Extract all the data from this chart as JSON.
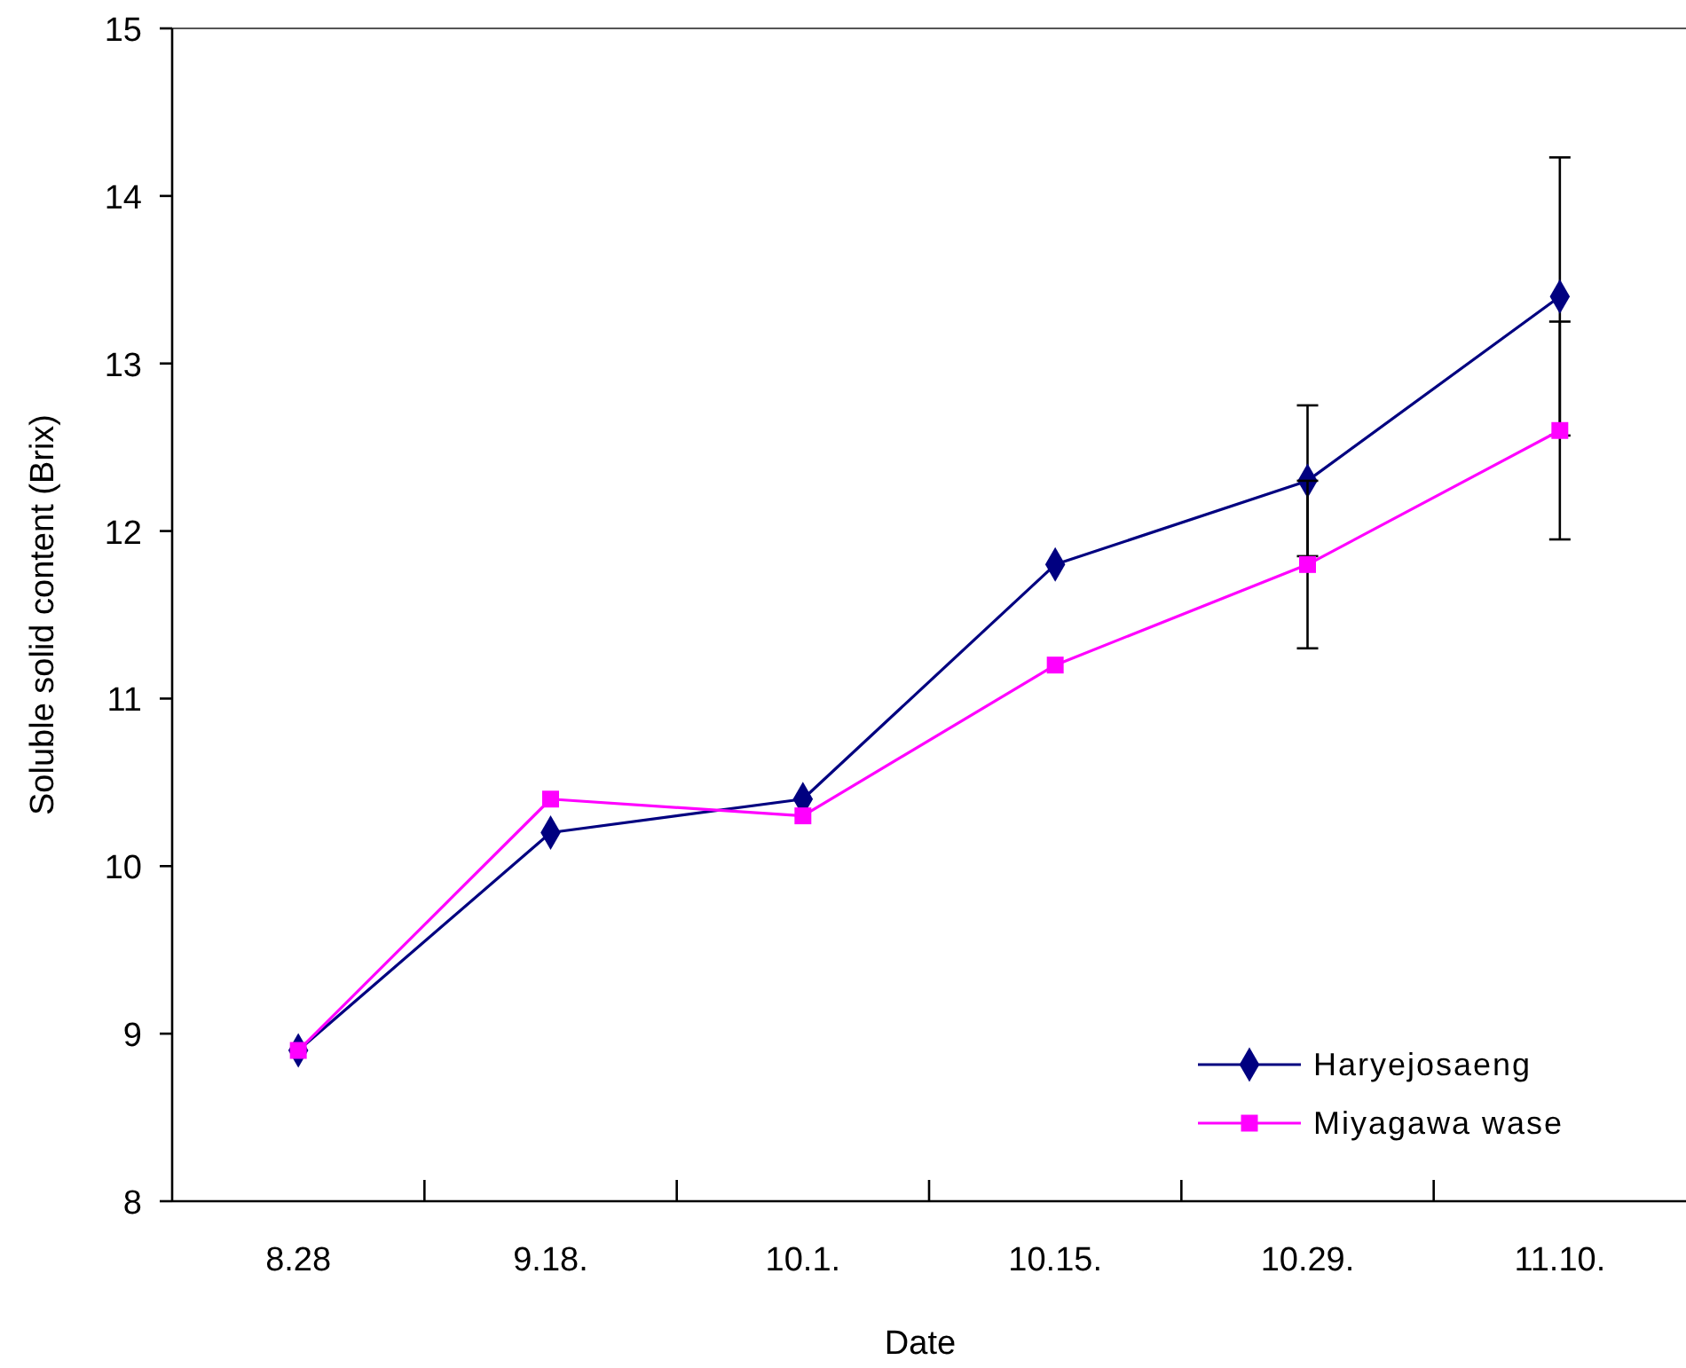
{
  "chart_data": {
    "type": "line",
    "xlabel": "Date",
    "ylabel": "Soluble solid content (Brix)",
    "categories": [
      "8.28",
      "9.18.",
      "10.1.",
      "10.15.",
      "10.29.",
      "11.10."
    ],
    "ylim": [
      8,
      15
    ],
    "yticks": [
      8,
      9,
      10,
      11,
      12,
      13,
      14,
      15
    ],
    "grid": false,
    "legend": "bottom right",
    "line_style": "solid",
    "series": [
      {
        "name": "Haryejosaeng",
        "color": "#000080",
        "marker": "diamond",
        "values": [
          8.9,
          10.2,
          10.4,
          11.8,
          12.3,
          13.4
        ],
        "errors": [
          null,
          null,
          null,
          null,
          0.45,
          0.83
        ]
      },
      {
        "name": "Miyagawa wase",
        "color": "#ff00ff",
        "marker": "square",
        "values": [
          8.9,
          10.4,
          10.3,
          11.2,
          11.8,
          12.6
        ],
        "errors": [
          null,
          null,
          null,
          null,
          0.5,
          0.65
        ]
      }
    ]
  }
}
